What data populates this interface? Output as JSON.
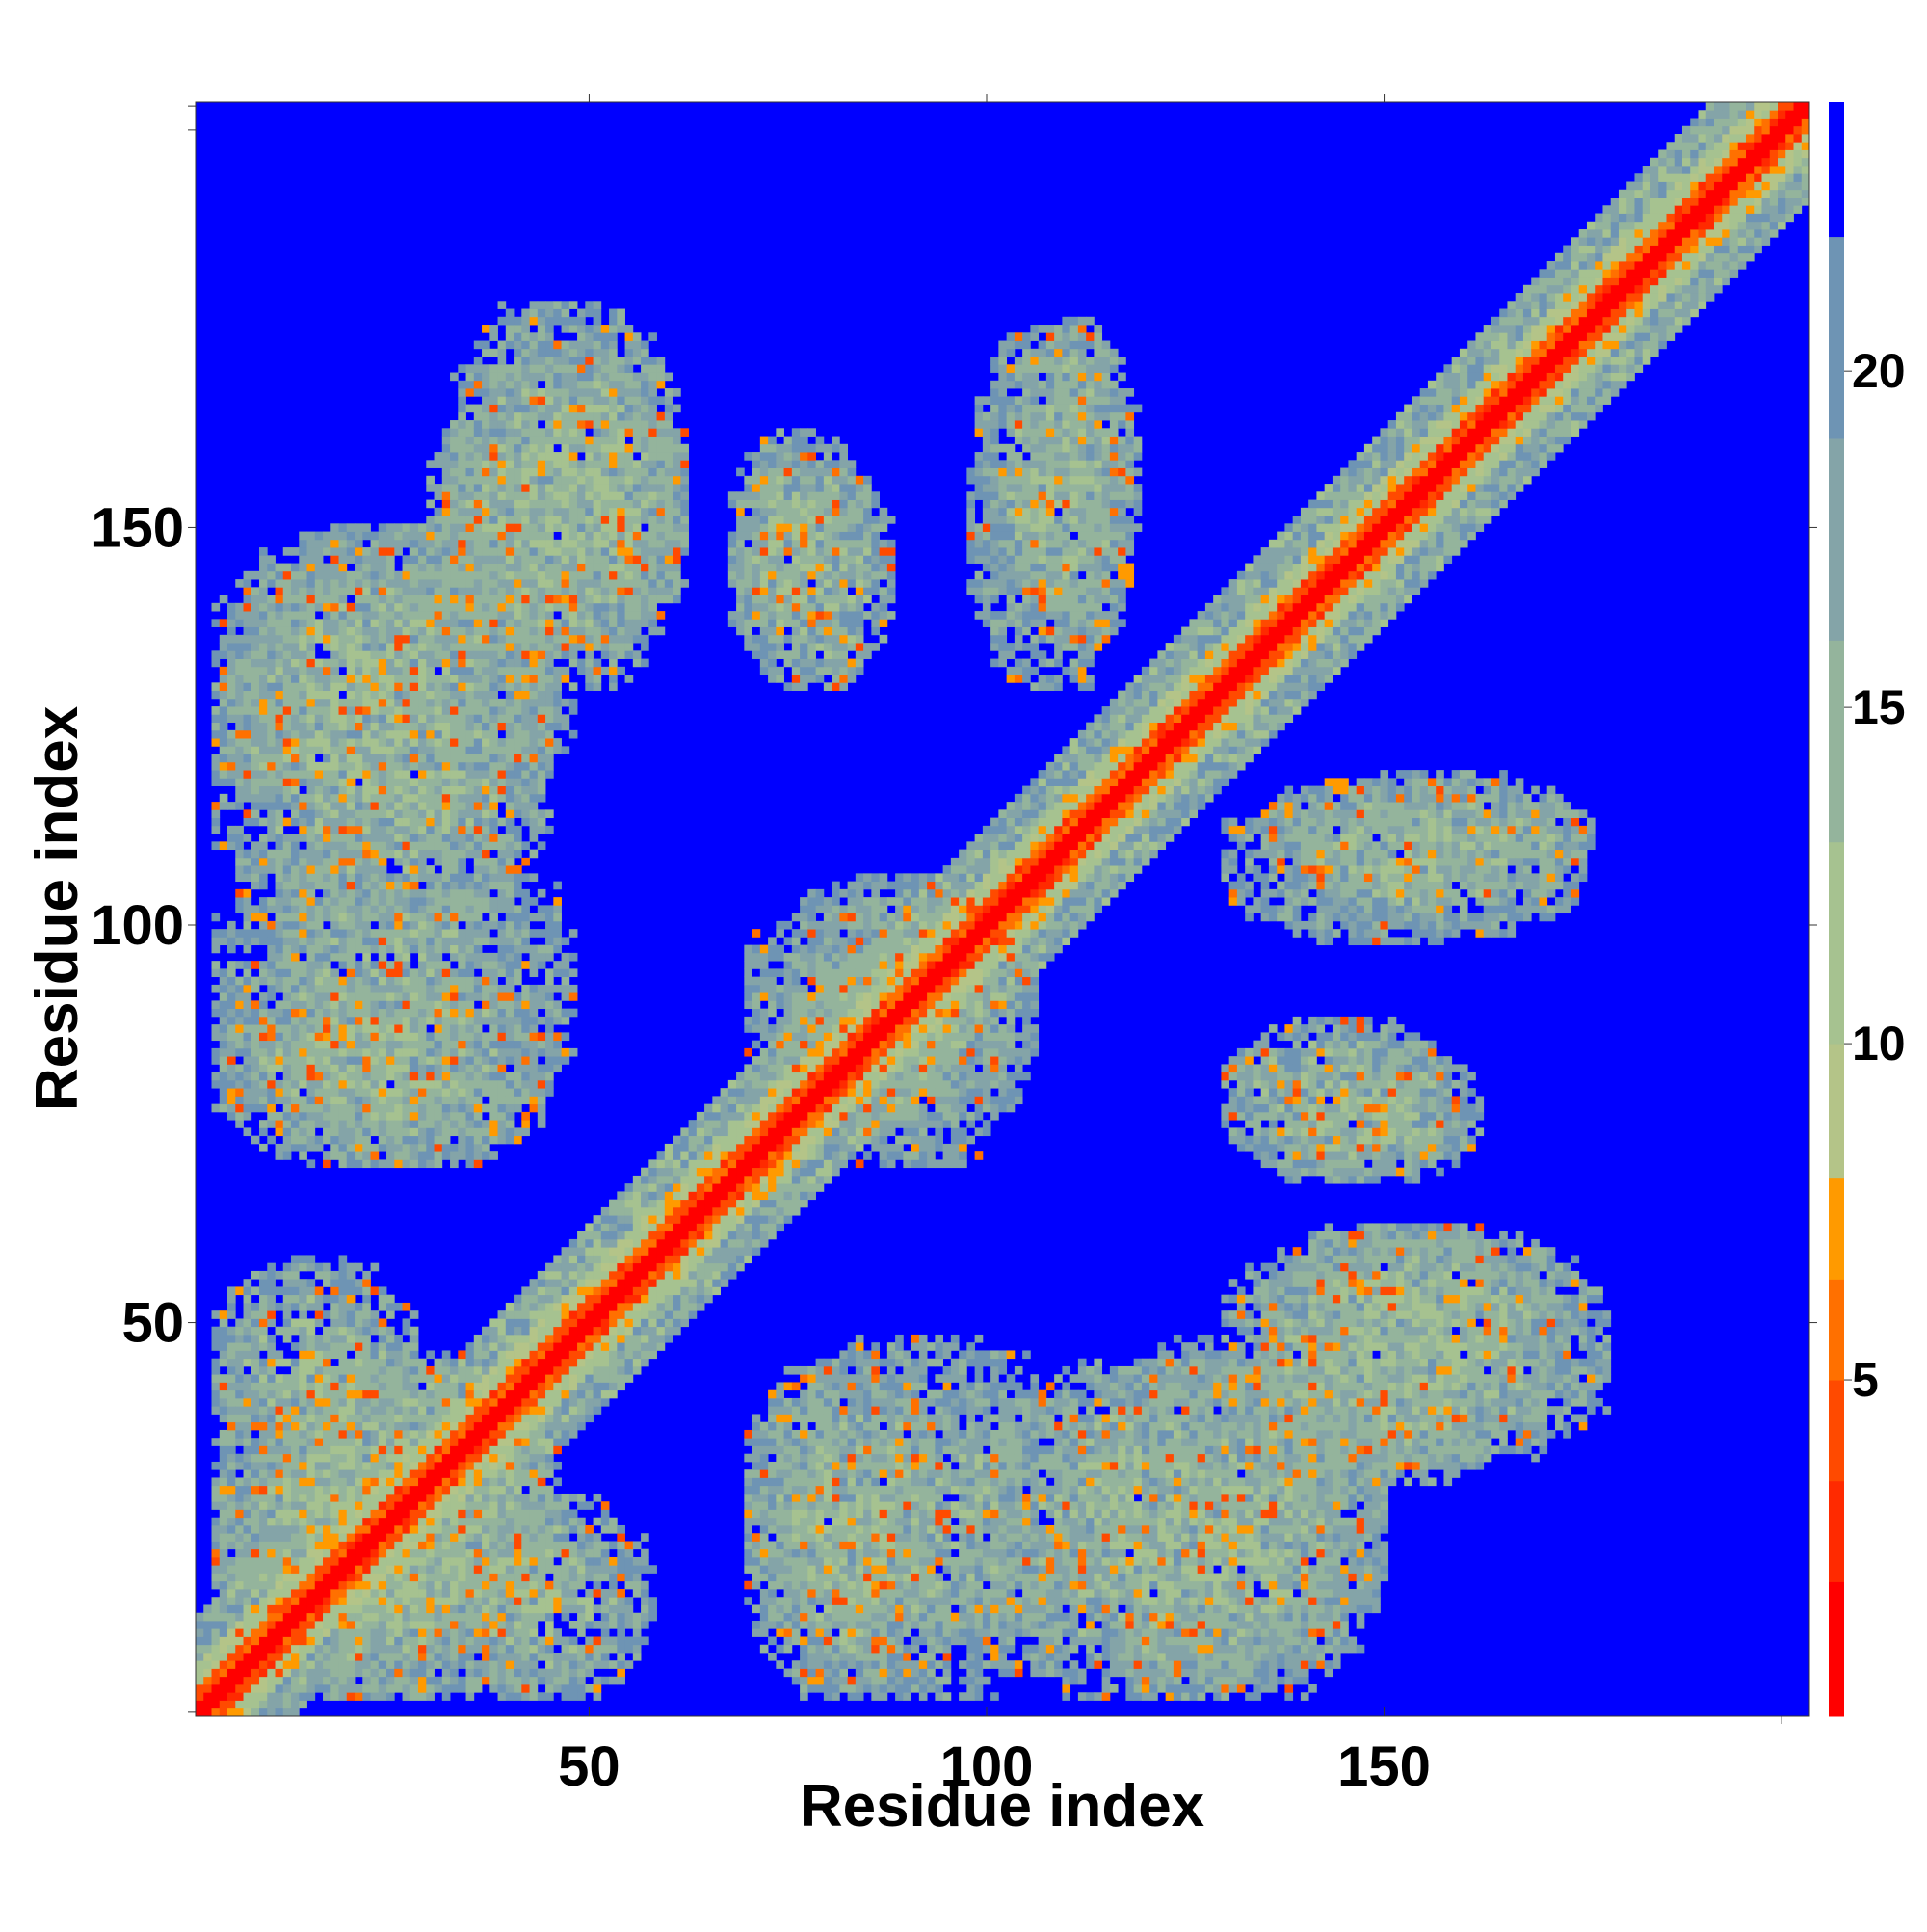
{
  "chart_data": {
    "type": "heatmap",
    "title": "",
    "xlabel": "Residue index",
    "ylabel": "Residue index",
    "n_residues": 203,
    "xlim": [
      1,
      203
    ],
    "ylim": [
      1,
      203
    ],
    "x_ticks": [
      50,
      100,
      150
    ],
    "y_ticks": [
      50,
      100,
      150
    ],
    "colorbar": {
      "range": [
        0,
        24
      ],
      "ticks": [
        5,
        10,
        15,
        20
      ],
      "bands": [
        {
          "from": 0,
          "to": 2,
          "color": "#ff0000"
        },
        {
          "from": 2,
          "to": 3.5,
          "color": "#ff2a00"
        },
        {
          "from": 3.5,
          "to": 5,
          "color": "#ff4a00"
        },
        {
          "from": 5,
          "to": 6.5,
          "color": "#ff7000"
        },
        {
          "from": 6.5,
          "to": 8,
          "color": "#ff9a00"
        },
        {
          "from": 8,
          "to": 10,
          "color": "#b4c488"
        },
        {
          "from": 10,
          "to": 13,
          "color": "#a6c290"
        },
        {
          "from": 13,
          "to": 16,
          "color": "#94b49c"
        },
        {
          "from": 16,
          "to": 19,
          "color": "#84a4a8"
        },
        {
          "from": 19,
          "to": 22,
          "color": "#6e94b4"
        },
        {
          "from": 22,
          "to": 24,
          "color": "#0000ff"
        }
      ]
    },
    "background_color": "#0000ff",
    "diagonal_contact_width": 8,
    "contact_regions": [
      {
        "x_range": [
          3,
          45
        ],
        "y_range": [
          3,
          46
        ],
        "mean_distance": 15
      },
      {
        "x_range": [
          30,
          58
        ],
        "y_range": [
          3,
          28
        ],
        "mean_distance": 15
      },
      {
        "x_range": [
          70,
          112
        ],
        "y_range": [
          3,
          48
        ],
        "mean_distance": 16
      },
      {
        "x_range": [
          112,
          150
        ],
        "y_range": [
          3,
          48
        ],
        "mean_distance": 16
      },
      {
        "x_range": [
          135,
          170
        ],
        "y_range": [
          30,
          62
        ],
        "mean_distance": 15
      },
      {
        "x_range": [
          3,
          45
        ],
        "y_range": [
          70,
          95
        ],
        "mean_distance": 15
      },
      {
        "x_range": [
          3,
          45
        ],
        "y_range": [
          97,
          150
        ],
        "mean_distance": 15
      },
      {
        "x_range": [
          32,
          62
        ],
        "y_range": [
          130,
          178
        ],
        "mean_distance": 15
      },
      {
        "x_range": [
          68,
          88
        ],
        "y_range": [
          130,
          158
        ],
        "mean_distance": 15
      },
      {
        "x_range": [
          98,
          118
        ],
        "y_range": [
          130,
          175
        ],
        "mean_distance": 16
      },
      {
        "x_range": [
          138,
          162
        ],
        "y_range": [
          68,
          85
        ],
        "mean_distance": 15
      },
      {
        "x_range": [
          135,
          176
        ],
        "y_range": [
          103,
          119
        ],
        "mean_distance": 15
      },
      {
        "x_range": [
          70,
          106
        ],
        "y_range": [
          75,
          105
        ],
        "mean_distance": 16
      }
    ]
  }
}
